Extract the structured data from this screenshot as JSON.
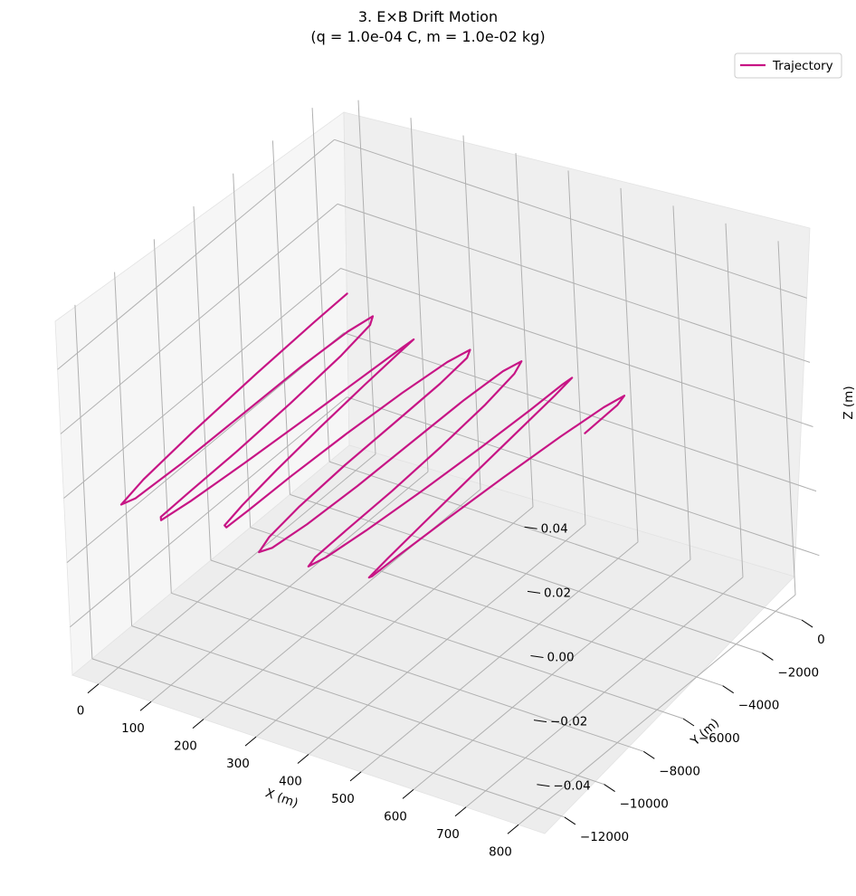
{
  "chart_data": {
    "type": "line",
    "projection": "3d",
    "title_lines": [
      "3. E×B Drift Motion",
      "(q = 1.0e-04 C, m = 1.0e-02 kg)"
    ],
    "xlabel": "X (m)",
    "ylabel": "Y (m)",
    "zlabel": "Z (m)",
    "xlim": [
      -50,
      850
    ],
    "ylim": [
      -13000,
      1000
    ],
    "zlim": [
      -0.055,
      0.055
    ],
    "xticks": [
      "0",
      "100",
      "200",
      "300",
      "400",
      "500",
      "600",
      "700",
      "800"
    ],
    "xtick_values": [
      0,
      100,
      200,
      300,
      400,
      500,
      600,
      700,
      800
    ],
    "yticks": [
      "0",
      "−2000",
      "−4000",
      "−6000",
      "−8000",
      "−10000",
      "−12000"
    ],
    "ytick_values": [
      0,
      -2000,
      -4000,
      -6000,
      -8000,
      -10000,
      -12000
    ],
    "zticks": [
      "−0.04",
      "−0.02",
      "0.00",
      "0.02",
      "0.04"
    ],
    "ztick_values": [
      -0.04,
      -0.02,
      0,
      0.02,
      0.04
    ],
    "grid": true,
    "legend": {
      "location": "upper right",
      "entries": [
        "Trajectory"
      ]
    },
    "series": [
      {
        "name": "Trajectory",
        "color": "#c71585",
        "x": [
          0.0,
          2.0,
          7.8,
          16.7,
          27.5,
          38.4,
          47.3,
          53.1,
          55.1,
          57.1,
          62.9,
          71.8,
          82.6,
          93.5,
          102.4,
          108.2,
          110.2,
          112.2,
          118.0,
          126.9,
          137.7,
          148.6,
          157.5,
          163.3,
          165.3,
          167.3,
          173.1,
          182.0,
          192.8,
          203.7,
          212.6,
          218.4,
          220.4,
          222.4,
          228.2,
          237.1,
          247.9,
          258.8,
          267.7,
          273.5,
          275.5,
          277.5,
          283.3,
          292.2,
          303.0,
          313.9,
          322.8,
          328.6,
          330.6,
          332.6,
          338.4,
          347.3,
          358.1,
          369.0,
          377.9,
          383.7,
          385.7,
          387.7,
          393.5,
          402.4,
          413.2,
          424.1,
          433.0,
          438.8,
          440.8,
          442.8,
          448.6,
          457.5,
          468.3,
          479.2,
          488.1,
          493.9,
          495.9,
          497.9,
          503.7,
          512.6,
          523.4,
          534.3,
          543.2,
          549.0,
          551.0
        ],
        "y": [
          0,
          -1740,
          -4760,
          -8220,
          -11030,
          -12440,
          -11960,
          -9800,
          -6800,
          -3840,
          -1650,
          -610,
          -1030,
          -2820,
          -5600,
          -8480,
          -10920,
          -12400,
          -12540,
          -11280,
          -8860,
          -5940,
          -3260,
          -1500,
          -1020,
          -1840,
          -3720,
          -6200,
          -8700,
          -10700,
          -11840,
          -11900,
          -10820,
          -8740,
          -6100,
          -3500,
          -1520,
          -650,
          -1040,
          -2560,
          -4880,
          -7480,
          -9920,
          -11700,
          -12500,
          -12120,
          -10600,
          -8200,
          -5400,
          -2900,
          -1100,
          -400,
          -1050,
          -2800,
          -5300,
          -7900,
          -10300,
          -11900,
          -12400,
          -11750,
          -10000,
          -7500,
          -4800,
          -2400,
          -800,
          -380,
          -1400,
          -3600,
          -6300,
          -8900,
          -10900,
          -12000,
          -11900,
          -10650,
          -8400,
          -5700,
          -3100,
          -1200,
          -400,
          -900,
          -2600
        ],
        "z": [
          0,
          0,
          0,
          0,
          0,
          0,
          0,
          0,
          0,
          0,
          0,
          0,
          0,
          0,
          0,
          0,
          0,
          0,
          0,
          0,
          0,
          0,
          0,
          0,
          0,
          0,
          0,
          0,
          0,
          0,
          0,
          0,
          0,
          0,
          0,
          0,
          0,
          0,
          0,
          0,
          0,
          0,
          0,
          0,
          0,
          0,
          0,
          0,
          0,
          0,
          0,
          0,
          0,
          0,
          0,
          0,
          0,
          0,
          0,
          0,
          0,
          0,
          0,
          0,
          0,
          0,
          0,
          0,
          0,
          0,
          0,
          0,
          0,
          0,
          0,
          0,
          0,
          0,
          0,
          0,
          0
        ]
      }
    ]
  }
}
